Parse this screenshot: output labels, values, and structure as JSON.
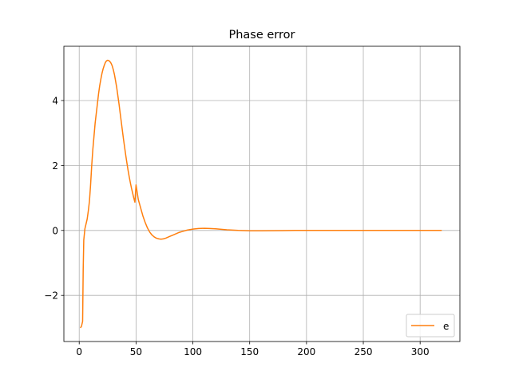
{
  "chart_data": {
    "type": "line",
    "title": "Phase error",
    "xlabel": "",
    "ylabel": "",
    "xlim": [
      -13.5,
      335
    ],
    "ylim": [
      -3.42,
      5.67
    ],
    "xticks": [
      0,
      50,
      100,
      150,
      200,
      250,
      300
    ],
    "yticks": [
      -2,
      0,
      2,
      4
    ],
    "grid": true,
    "legend_position": "lower-right",
    "series": [
      {
        "name": "e",
        "color": "#ff7f0e",
        "points": [
          [
            1,
            -3.0
          ],
          [
            2,
            -2.95
          ],
          [
            3,
            -2.8
          ],
          [
            3.5,
            -1.2
          ],
          [
            4,
            -0.3
          ],
          [
            5,
            0.05
          ],
          [
            6,
            0.2
          ],
          [
            7,
            0.35
          ],
          [
            8,
            0.6
          ],
          [
            9,
            0.9
          ],
          [
            10,
            1.4
          ],
          [
            11,
            2.0
          ],
          [
            12,
            2.5
          ],
          [
            13,
            2.9
          ],
          [
            14,
            3.3
          ],
          [
            15,
            3.6
          ],
          [
            16,
            3.9
          ],
          [
            17,
            4.2
          ],
          [
            18,
            4.45
          ],
          [
            19,
            4.65
          ],
          [
            20,
            4.83
          ],
          [
            21,
            4.97
          ],
          [
            22,
            5.08
          ],
          [
            23,
            5.17
          ],
          [
            24,
            5.22
          ],
          [
            25,
            5.24
          ],
          [
            26,
            5.23
          ],
          [
            27,
            5.2
          ],
          [
            28,
            5.15
          ],
          [
            29,
            5.07
          ],
          [
            30,
            4.95
          ],
          [
            31,
            4.8
          ],
          [
            32,
            4.6
          ],
          [
            33,
            4.4
          ],
          [
            34,
            4.15
          ],
          [
            35,
            3.9
          ],
          [
            36,
            3.62
          ],
          [
            37,
            3.35
          ],
          [
            38,
            3.07
          ],
          [
            39,
            2.8
          ],
          [
            40,
            2.55
          ],
          [
            41,
            2.3
          ],
          [
            42,
            2.07
          ],
          [
            43,
            1.85
          ],
          [
            44,
            1.65
          ],
          [
            45,
            1.47
          ],
          [
            46,
            1.3
          ],
          [
            47,
            1.15
          ],
          [
            48,
            1.0
          ],
          [
            49,
            0.87
          ],
          [
            50,
            1.4
          ],
          [
            52,
            0.95
          ],
          [
            54,
            0.7
          ],
          [
            56,
            0.45
          ],
          [
            58,
            0.25
          ],
          [
            60,
            0.08
          ],
          [
            62,
            -0.05
          ],
          [
            64,
            -0.14
          ],
          [
            66,
            -0.2
          ],
          [
            68,
            -0.24
          ],
          [
            70,
            -0.26
          ],
          [
            72,
            -0.27
          ],
          [
            74,
            -0.26
          ],
          [
            76,
            -0.24
          ],
          [
            78,
            -0.21
          ],
          [
            80,
            -0.18
          ],
          [
            82,
            -0.15
          ],
          [
            84,
            -0.12
          ],
          [
            86,
            -0.09
          ],
          [
            88,
            -0.06
          ],
          [
            90,
            -0.04
          ],
          [
            95,
            0.01
          ],
          [
            100,
            0.04
          ],
          [
            105,
            0.06
          ],
          [
            110,
            0.065
          ],
          [
            115,
            0.06
          ],
          [
            120,
            0.05
          ],
          [
            125,
            0.035
          ],
          [
            130,
            0.02
          ],
          [
            135,
            0.01
          ],
          [
            140,
            0.0
          ],
          [
            145,
            -0.005
          ],
          [
            150,
            -0.01
          ],
          [
            160,
            -0.01
          ],
          [
            170,
            -0.008
          ],
          [
            180,
            -0.004
          ],
          [
            190,
            0.0
          ],
          [
            200,
            0.002
          ],
          [
            220,
            0.001
          ],
          [
            240,
            0.0
          ],
          [
            260,
            0.0
          ],
          [
            280,
            0.0
          ],
          [
            300,
            0.0
          ],
          [
            319,
            0.0
          ]
        ]
      }
    ]
  }
}
